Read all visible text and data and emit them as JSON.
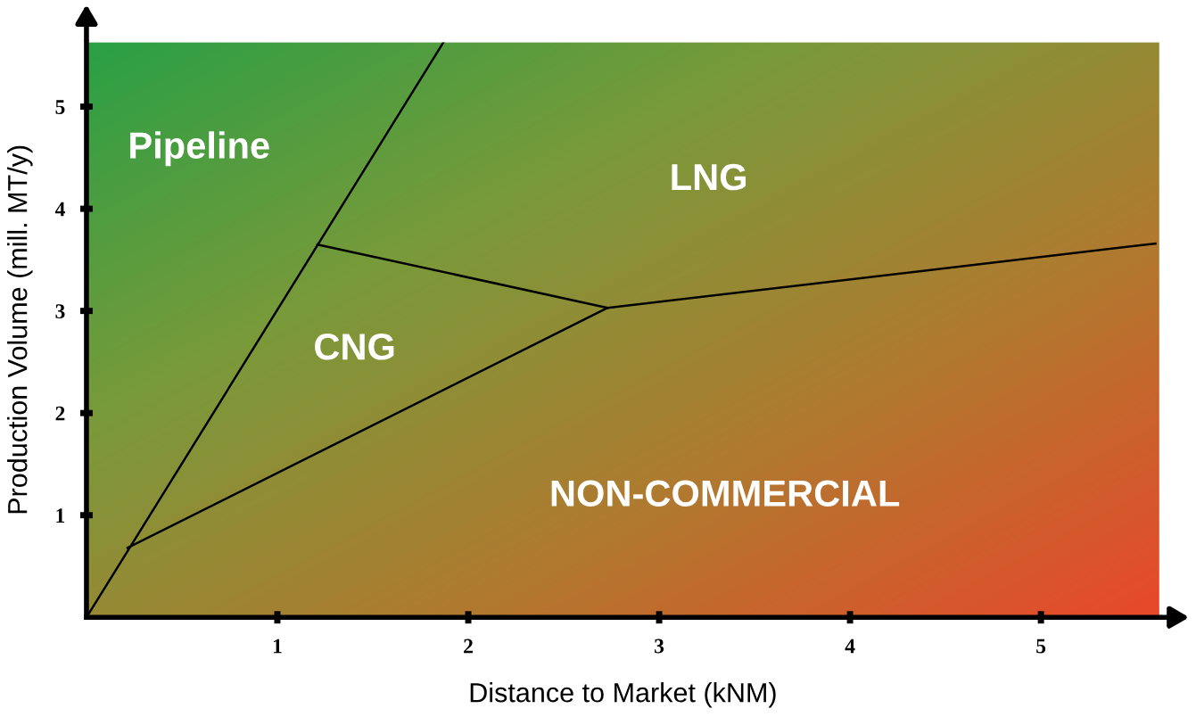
{
  "chart_data": {
    "type": "line",
    "xlabel": "Distance to Market (kNM)",
    "ylabel": "Production Volume (mill. MT/y)",
    "series": [
      {
        "color": "#000000",
        "x": [
          0,
          1.87
        ],
        "values": [
          0,
          5.63
        ]
      },
      {
        "color": "#000000",
        "x": [
          0.215,
          2.73,
          5.6
        ],
        "values": [
          0.68,
          3.03,
          3.66
        ]
      },
      {
        "color": "#000000",
        "x": [
          1.21,
          2.73
        ],
        "values": [
          3.65,
          3.03
        ]
      }
    ],
    "annotations": [
      "Pipeline",
      "LNG",
      "CNG",
      "NON-COMMERCIAL"
    ],
    "xlim": [
      0,
      5.62
    ],
    "ylim": [
      0,
      5.63
    ],
    "xticks": [
      1,
      2,
      3,
      4,
      5
    ],
    "yticks": [
      1,
      2,
      3,
      4,
      5
    ],
    "grid": false,
    "legend": false,
    "marker": "none",
    "line_style": "solid"
  }
}
